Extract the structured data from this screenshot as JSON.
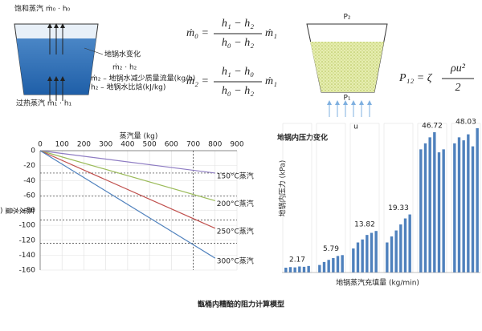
{
  "diagram_left": {
    "top_label": "饱和蒸汽 ṁ₀ · h₀",
    "bottom_label": "过热蒸汽 ṁ₁ · h₁",
    "water_label": "地锅水变化",
    "water_symbol": "ṁ₂ · h₂",
    "legend": [
      "ṁ₂ – 地锅水减少质量流量(kg/h)",
      "h₂ – 地锅水比焓(kJ/kg)"
    ]
  },
  "equations": [
    {
      "lhs": "ṁ₀ =",
      "numerator": "h₁ − h₂",
      "denominator": "h₀ − h₂",
      "factor": "ṁ₁"
    },
    {
      "lhs": "ṁ₂ =",
      "numerator": "h₁ − h₀",
      "denominator": "h₀ − h₂",
      "factor": "ṁ₁"
    }
  ],
  "diagram_right": {
    "top_label": "P₂",
    "bottom_label": "P₁",
    "flow_label": "u",
    "equation": {
      "lhs": "P₁₂ = ζ",
      "numerator": "ρu²",
      "denominator": "2"
    }
  },
  "chart_data": [
    {
      "type": "line",
      "x_label": "蒸汽量 (kg)",
      "y_label": "蒸发水量 (kg)",
      "xlim": [
        0,
        900
      ],
      "xticks": [
        0,
        100,
        200,
        300,
        400,
        500,
        600,
        700,
        800,
        900
      ],
      "ylim": [
        -160,
        0
      ],
      "yticks": [
        0,
        -20,
        -40,
        -60,
        -80,
        -100,
        -120,
        -140,
        -160
      ],
      "grid": true,
      "series": [
        {
          "name": "150°C蒸汽",
          "color": "#8e7cc3",
          "x": [
            0,
            800
          ],
          "values": [
            0,
            -30
          ]
        },
        {
          "name": "200°C蒸汽",
          "color": "#9bbb59",
          "x": [
            0,
            800
          ],
          "values": [
            0,
            -67
          ]
        },
        {
          "name": "250°C蒸汽",
          "color": "#c0504d",
          "x": [
            0,
            800
          ],
          "values": [
            0,
            -104
          ]
        },
        {
          "name": "300°C蒸汽",
          "color": "#4f81bd",
          "x": [
            0,
            800
          ],
          "values": [
            0,
            -144
          ]
        }
      ],
      "reference_lines": {
        "y": [
          -30,
          -61,
          -93,
          -124
        ],
        "x": [
          700
        ]
      }
    },
    {
      "type": "grouped_bar",
      "title": "地锅内压力变化",
      "x_label": "地锅蒸汽充填量 (kg/min)",
      "y_label": "地锅内压力 (kPa)",
      "color": "#4f81bd",
      "groups": [
        {
          "values": [
            1.6,
            1.8,
            1.7,
            2.0,
            1.9,
            2.17
          ]
        },
        {
          "values": [
            2.5,
            3.5,
            4.2,
            4.8,
            5.5,
            5.79
          ]
        },
        {
          "values": [
            8,
            10,
            11,
            12.5,
            13.2,
            13.82
          ]
        },
        {
          "values": [
            10,
            12,
            14,
            16,
            18,
            19.33
          ]
        },
        {
          "values": [
            41,
            43,
            45,
            46.72,
            40,
            41
          ]
        },
        {
          "values": [
            43,
            45,
            44,
            46,
            42,
            48.03
          ]
        }
      ]
    }
  ],
  "caption": "甑桶内糟醅的阻力计算模型"
}
